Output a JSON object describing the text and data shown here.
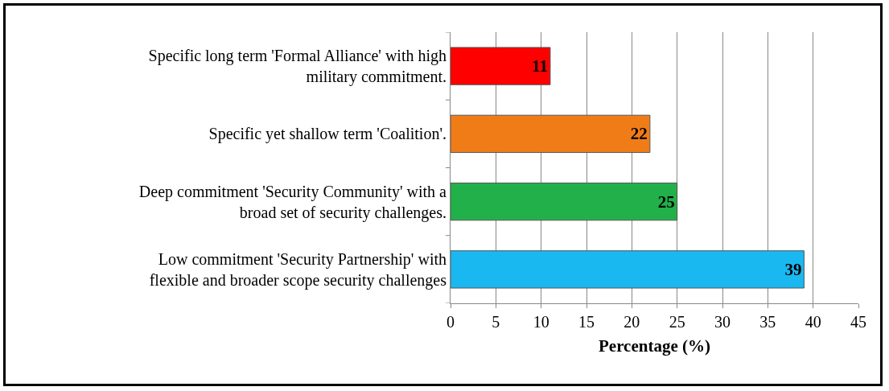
{
  "chart_data": {
    "type": "bar",
    "orientation": "horizontal",
    "categories": [
      "Specific long term 'Formal Alliance' with high military commitment.",
      "Specific yet shallow term 'Coalition'.",
      "Deep commitment 'Security Community' with a broad set of security challenges.",
      "Low commitment 'Security Partnership' with flexible and broader scope security challenges"
    ],
    "values": [
      11,
      22,
      25,
      39
    ],
    "colors": [
      "#ff0000",
      "#f07c18",
      "#22b04a",
      "#1ab8f0"
    ],
    "xlabel": "Percentage (%)",
    "xlim": [
      0,
      45
    ],
    "xticks": [
      0,
      5,
      10,
      15,
      20,
      25,
      30,
      35,
      40,
      45
    ],
    "grid": "x",
    "data_labels": true
  }
}
